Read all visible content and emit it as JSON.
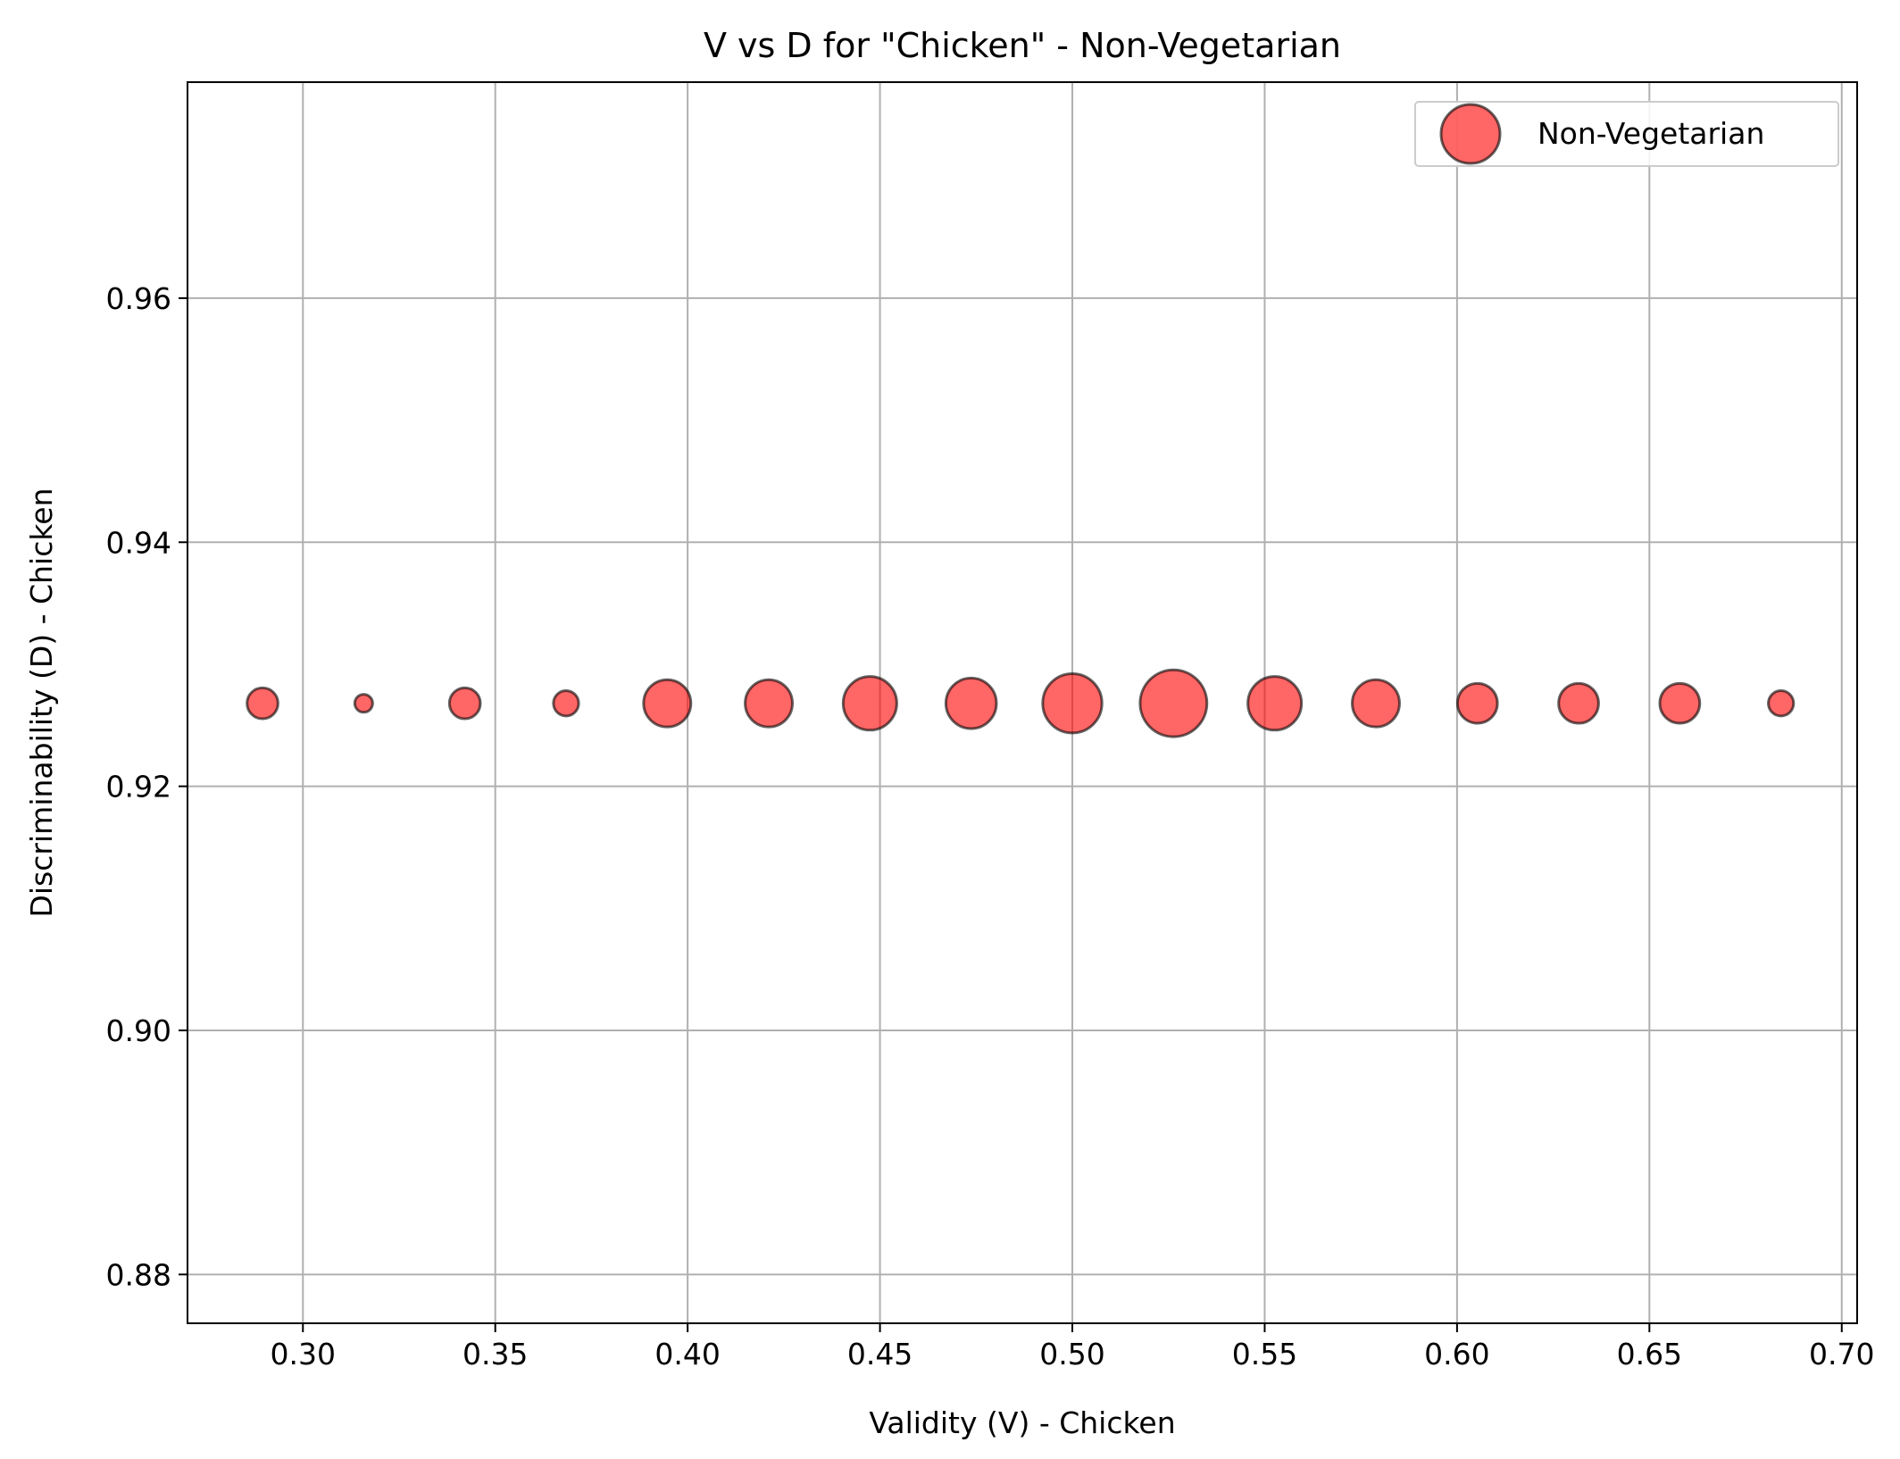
{
  "chart_data": {
    "type": "scatter",
    "title": "V vs D for \"Chicken\" - Non-Vegetarian",
    "xlabel": "Validity (V) - Chicken",
    "ylabel": "Discriminability (D) - Chicken",
    "xlim": [
      0.27,
      0.704
    ],
    "ylim": [
      0.876,
      0.9777
    ],
    "xticks": [
      0.3,
      0.35,
      0.4,
      0.45,
      0.5,
      0.55,
      0.6,
      0.65,
      0.7
    ],
    "xtick_labels": [
      "0.30",
      "0.35",
      "0.40",
      "0.45",
      "0.50",
      "0.55",
      "0.60",
      "0.65",
      "0.70"
    ],
    "yticks": [
      0.88,
      0.9,
      0.92,
      0.94,
      0.96
    ],
    "ytick_labels": [
      "0.88",
      "0.90",
      "0.92",
      "0.94",
      "0.96"
    ],
    "grid": true,
    "legend": {
      "placement": "top-right",
      "entries": [
        "Non-Vegetarian"
      ]
    },
    "series": [
      {
        "name": "Non-Vegetarian",
        "color": "#ff0000",
        "edge_color": "#000000",
        "alpha": 0.6,
        "x": [
          0.2895,
          0.3158,
          0.3421,
          0.3684,
          0.3947,
          0.4211,
          0.4474,
          0.4737,
          0.5,
          0.5263,
          0.5526,
          0.5789,
          0.6053,
          0.6316,
          0.6579,
          0.6842
        ],
        "y": [
          0.9268,
          0.9268,
          0.9268,
          0.9268,
          0.9268,
          0.9268,
          0.9268,
          0.9268,
          0.9268,
          0.9268,
          0.9268,
          0.9268,
          0.9268,
          0.9268,
          0.9268,
          0.9268
        ],
        "sizes": [
          3,
          1,
          3,
          2,
          7,
          7,
          9,
          8,
          11,
          14,
          9,
          7,
          5,
          5,
          5,
          2
        ]
      }
    ]
  }
}
